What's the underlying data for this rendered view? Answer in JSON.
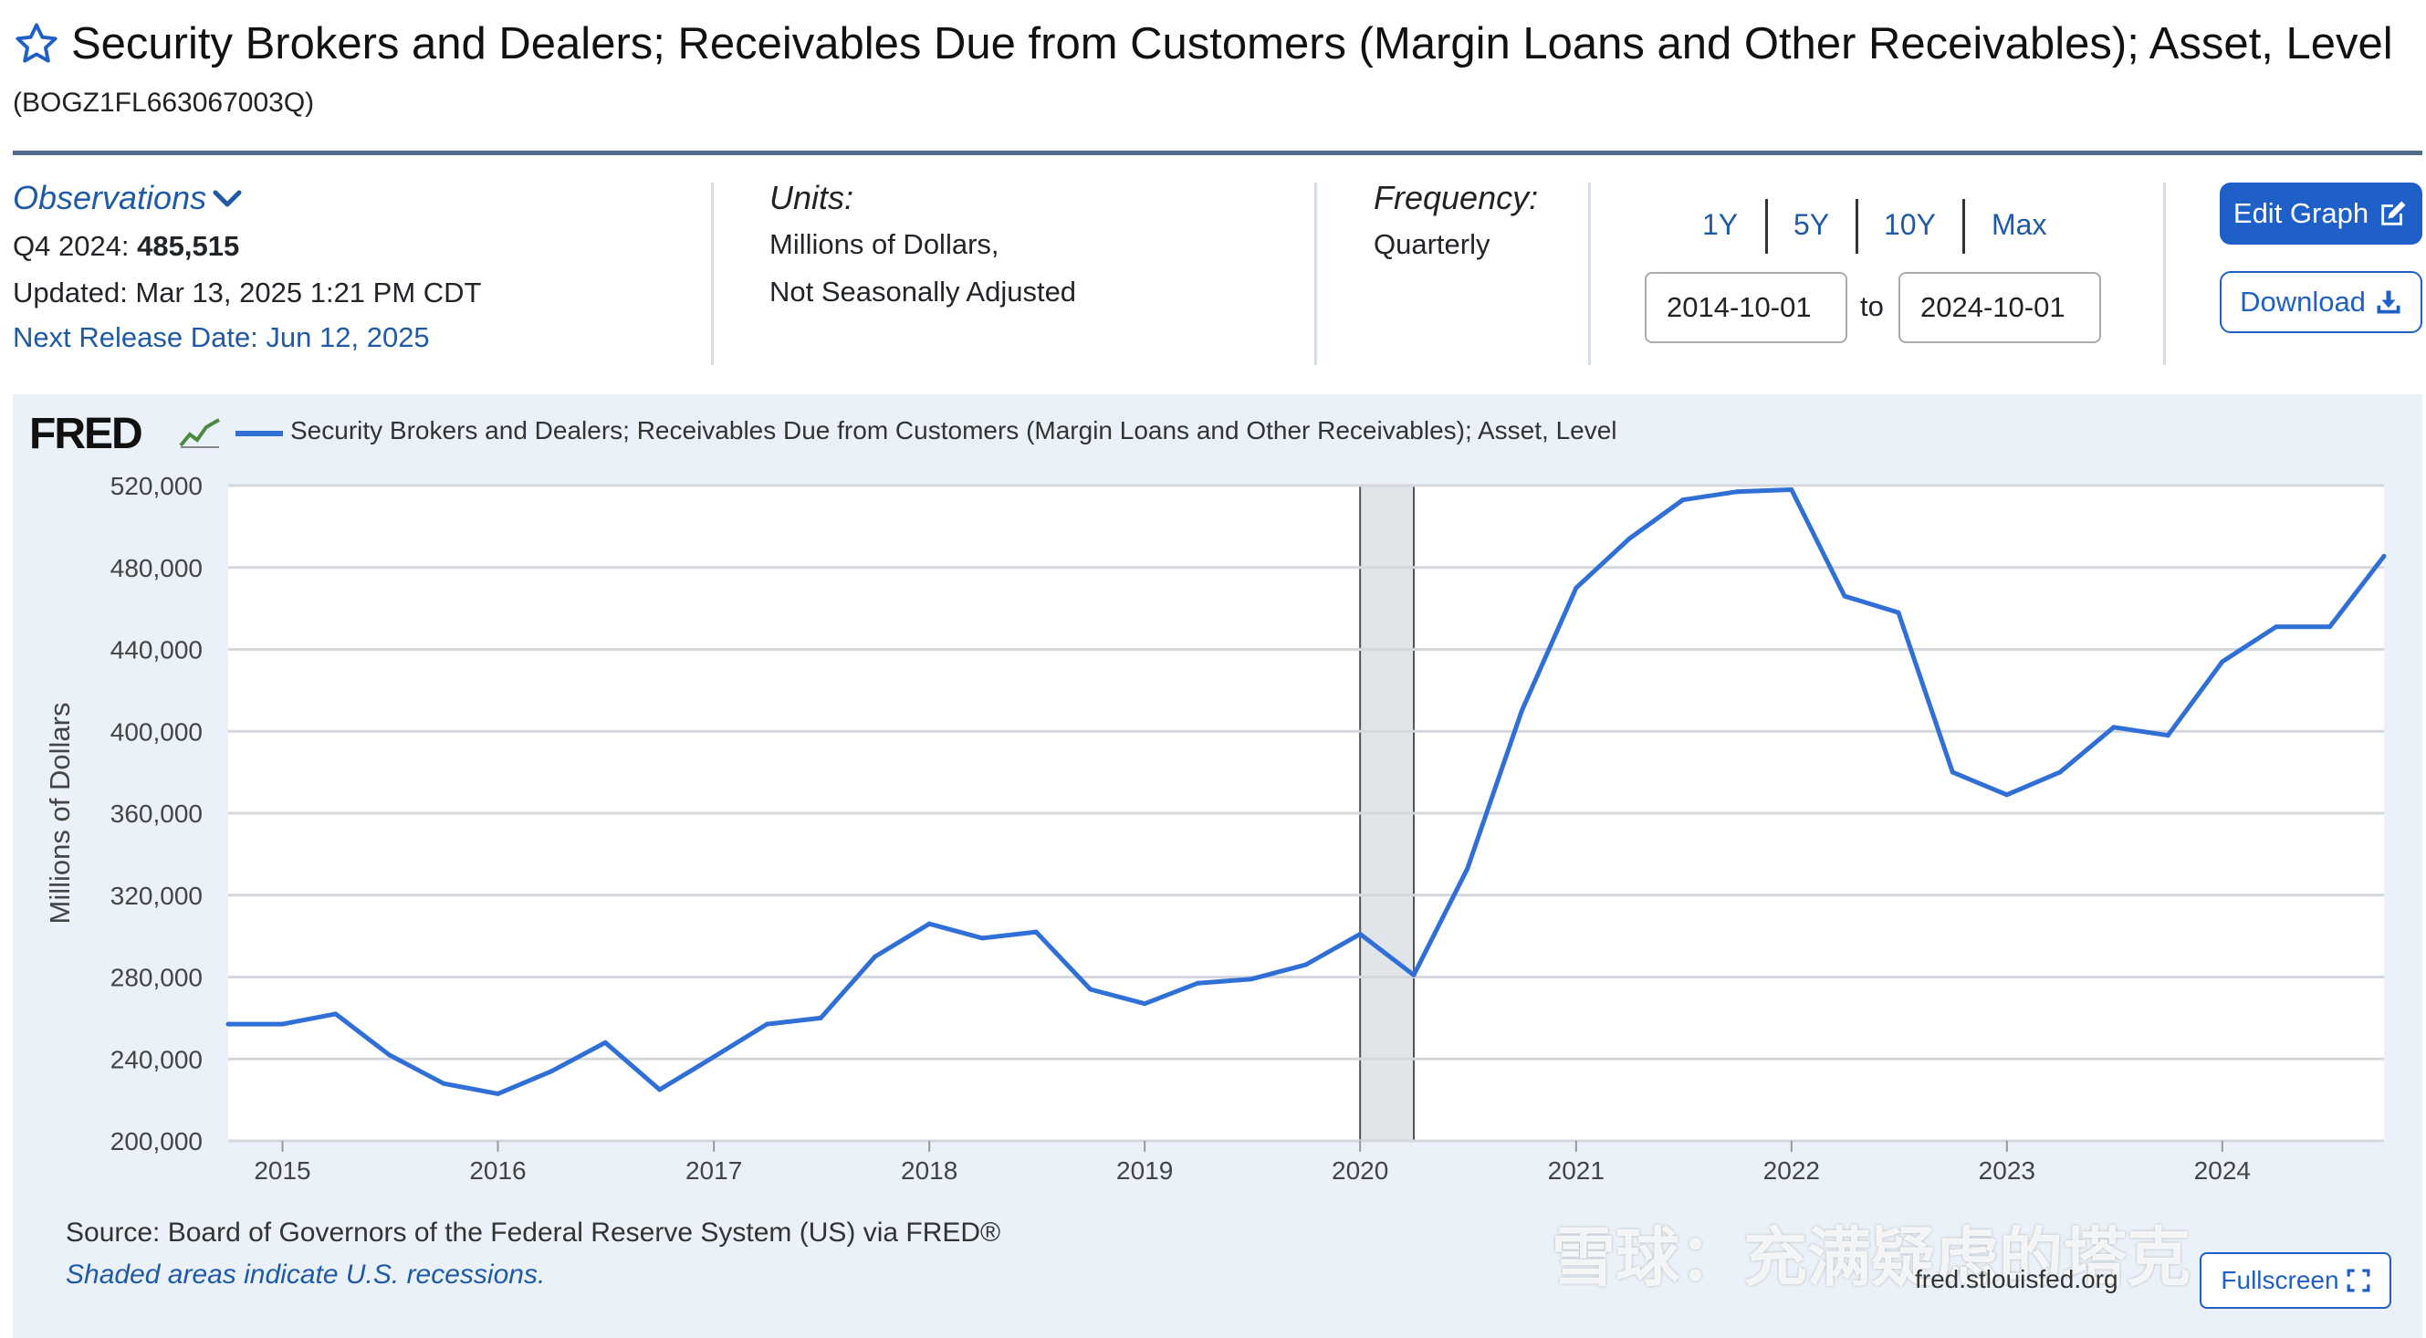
{
  "header": {
    "title": "Security Brokers and Dealers; Receivables Due from Customers (Margin Loans and Other Receivables); Asset, Level",
    "series_id": "(BOGZ1FL663067003Q)",
    "star_icon": "star-outline-icon"
  },
  "observations": {
    "label": "Observations",
    "period": "Q4 2024:",
    "value": "485,515",
    "updated": "Updated: Mar 13, 2025 1:21 PM CDT",
    "next_release": "Next Release Date: Jun 12, 2025"
  },
  "units": {
    "label": "Units:",
    "line1": "Millions of Dollars,",
    "line2": "Not Seasonally Adjusted"
  },
  "frequency": {
    "label": "Frequency:",
    "value": "Quarterly"
  },
  "range": {
    "buttons": [
      "1Y",
      "5Y",
      "10Y",
      "Max"
    ],
    "start": "2014-10-01",
    "to": "to",
    "end": "2024-10-01"
  },
  "actions": {
    "edit": "Edit Graph",
    "download": "Download",
    "fullscreen": "Fullscreen"
  },
  "graph": {
    "logo": "FRED",
    "legend": "Security Brokers and Dealers; Receivables Due from Customers (Margin Loans and Other Receivables); Asset, Level",
    "source": "Source: Board of Governors of the Federal Reserve System (US) via FRED®",
    "recession_note": "Shaded areas indicate U.S. recessions.",
    "site": "fred.stlouisfed.org",
    "watermark": "雪球：充满疑虑的塔克"
  },
  "colors": {
    "accent": "#1f5fc8",
    "line": "#2f6fd6",
    "panel": "#eaf1f9",
    "recession": "#e1e4e8"
  },
  "chart_data": {
    "type": "line",
    "title": "",
    "xlabel": "",
    "ylabel": "Millions of Dollars",
    "ylim": [
      200000,
      520000
    ],
    "yticks": [
      "200,000",
      "240,000",
      "280,000",
      "320,000",
      "360,000",
      "400,000",
      "440,000",
      "480,000",
      "520,000"
    ],
    "xticks": [
      "2015",
      "2016",
      "2017",
      "2018",
      "2019",
      "2020",
      "2021",
      "2022",
      "2023",
      "2024"
    ],
    "grid": true,
    "legend_placement": "top-left",
    "recessions": [
      {
        "start": "2020-01-01",
        "end": "2020-04-01"
      }
    ],
    "series": [
      {
        "name": "Security Brokers and Dealers; Receivables Due from Customers (Margin Loans and Other Receivables); Asset, Level",
        "x": [
          "2014-10-01",
          "2015-01-01",
          "2015-04-01",
          "2015-07-01",
          "2015-10-01",
          "2016-01-01",
          "2016-04-01",
          "2016-07-01",
          "2016-10-01",
          "2017-01-01",
          "2017-04-01",
          "2017-07-01",
          "2017-10-01",
          "2018-01-01",
          "2018-04-01",
          "2018-07-01",
          "2018-10-01",
          "2019-01-01",
          "2019-04-01",
          "2019-07-01",
          "2019-10-01",
          "2020-01-01",
          "2020-04-01",
          "2020-07-01",
          "2020-10-01",
          "2021-01-01",
          "2021-04-01",
          "2021-07-01",
          "2021-10-01",
          "2022-01-01",
          "2022-04-01",
          "2022-07-01",
          "2022-10-01",
          "2023-01-01",
          "2023-04-01",
          "2023-07-01",
          "2023-10-01",
          "2024-01-01",
          "2024-04-01",
          "2024-07-01",
          "2024-10-01"
        ],
        "values": [
          257000,
          257000,
          262000,
          242000,
          228000,
          223000,
          234000,
          248000,
          225000,
          241000,
          257000,
          260000,
          290000,
          306000,
          299000,
          302000,
          274000,
          267000,
          277000,
          279000,
          286000,
          301000,
          281000,
          333000,
          410000,
          470000,
          494000,
          513000,
          517000,
          518000,
          466000,
          458000,
          380000,
          369000,
          380000,
          402000,
          398000,
          434000,
          451000,
          451000,
          485515
        ]
      }
    ]
  }
}
